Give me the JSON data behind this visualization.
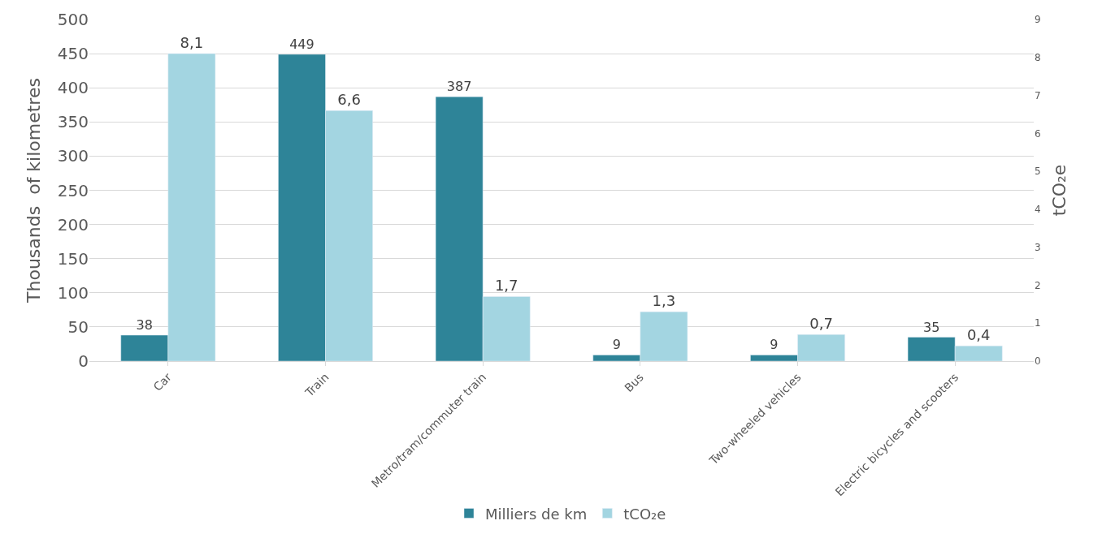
{
  "chart_data": {
    "type": "bar",
    "ylabel": "Thousands  of kilometres",
    "y2label": "tCO₂e",
    "categories": [
      "Car",
      "Train",
      "Metro/tram/commuter train",
      "Bus",
      "Two-wheeled vehicles",
      "Electric bicycles and scooters"
    ],
    "series": [
      {
        "name": "Milliers de km",
        "color": "#2e8498",
        "values": [
          38,
          449,
          387,
          9,
          9,
          35
        ],
        "value_labels": [
          "38",
          "449",
          "387",
          "9",
          "9",
          "35"
        ]
      },
      {
        "name": "tCO₂e",
        "color": "#a3d5e1",
        "axis": "y2",
        "values": [
          8.1,
          6.6,
          1.7,
          1.3,
          0.7,
          0.4
        ],
        "value_labels": [
          "8,1",
          "6,6",
          "1,7",
          "1,3",
          "0,7",
          "0,4"
        ]
      }
    ],
    "ylim": [
      0,
      500
    ],
    "yticks": [
      0,
      50,
      100,
      150,
      200,
      250,
      300,
      350,
      400,
      450,
      500
    ],
    "y2lim": [
      0,
      9
    ],
    "y2ticks": [
      0,
      1,
      2,
      3,
      4,
      5,
      6,
      7,
      8,
      9
    ],
    "grid": "y",
    "legend": "bottom"
  }
}
